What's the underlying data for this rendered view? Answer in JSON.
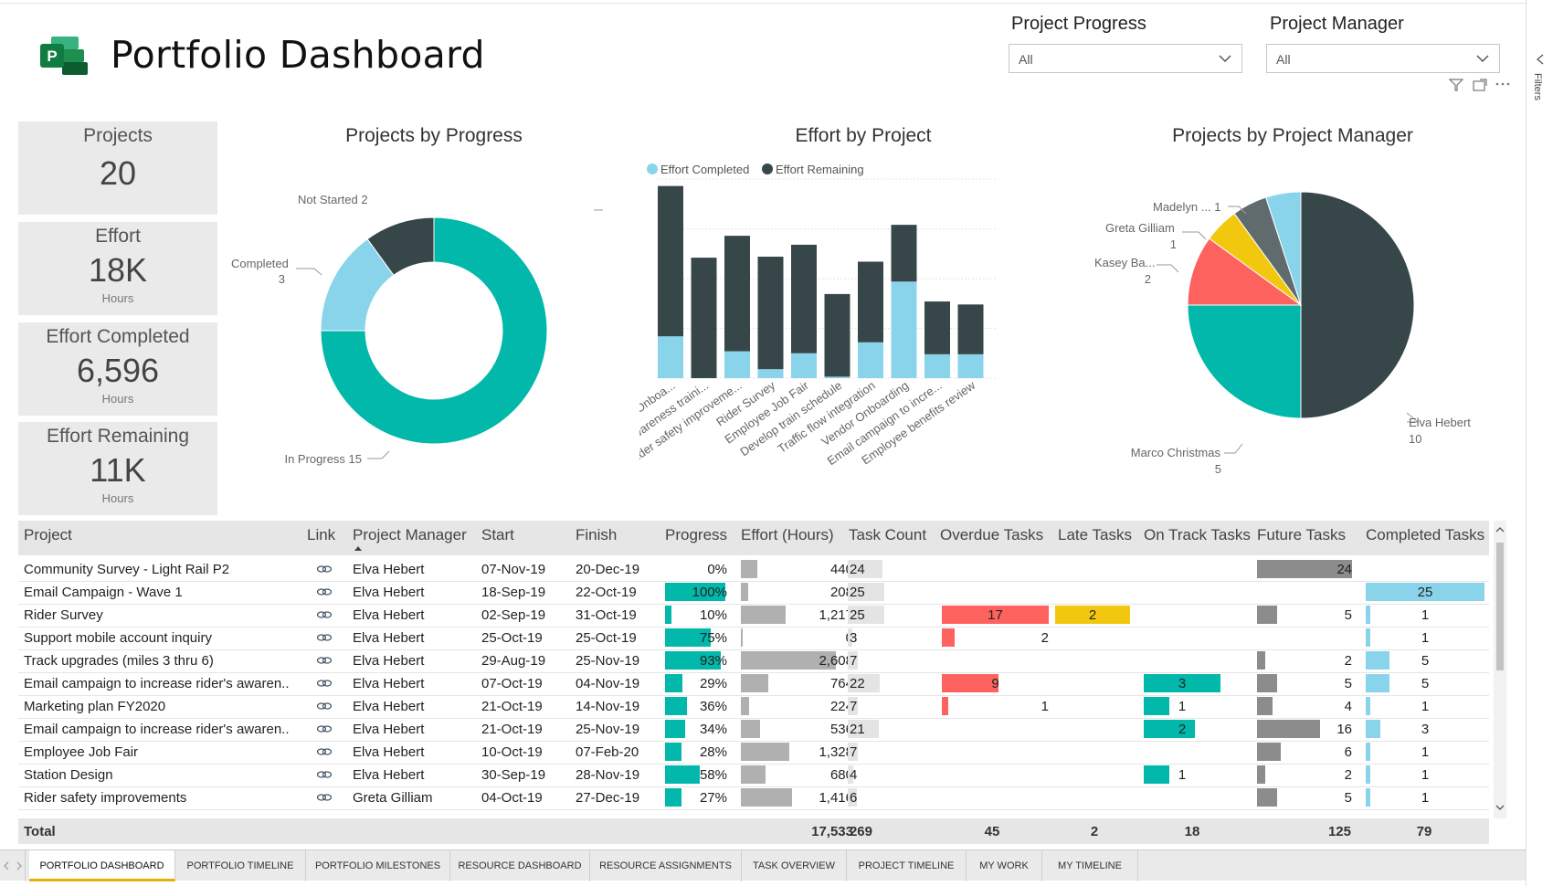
{
  "app": {
    "title": "Portfolio Dashboard",
    "logo_letter": "P"
  },
  "slicers": [
    {
      "label": "Project Progress",
      "value": "All"
    },
    {
      "label": "Project Manager",
      "value": "All"
    }
  ],
  "filters_pane": {
    "label": "Filters"
  },
  "cards": [
    {
      "label": "Projects",
      "value": "20",
      "unit": ""
    },
    {
      "label": "Effort",
      "value": "18K",
      "unit": "Hours"
    },
    {
      "label": "Effort Completed",
      "value": "6,596",
      "unit": "Hours"
    },
    {
      "label": "Effort Remaining",
      "value": "11K",
      "unit": "Hours"
    }
  ],
  "chart_data": [
    {
      "type": "pie",
      "variant": "donut",
      "title": "Projects by Progress",
      "slices": [
        {
          "label": "In Progress",
          "value": 15,
          "color": "#01B8AA"
        },
        {
          "label": "Completed",
          "value": 3,
          "color": "#8AD4EB"
        },
        {
          "label": "Not Started",
          "value": 2,
          "color": "#374649"
        }
      ],
      "data_labels": [
        "In Progress 15",
        "Completed",
        "3",
        "Not Started 2"
      ]
    },
    {
      "type": "bar",
      "stacked": true,
      "title": "Effort by Project",
      "categories": [
        "Vendor Onboa...",
        "Driver awareness traini...",
        "Rider safety improveme...",
        "Rider Survey",
        "Employee Job Fair",
        "Develop train schedule",
        "Traffic flow integration",
        "Vendor Onboarding",
        "Email campaign to incre...",
        "Employee benefits review"
      ],
      "series": [
        {
          "name": "Effort Completed",
          "color": "#8AD4EB",
          "values": [
            420,
            0,
            270,
            90,
            250,
            15,
            360,
            970,
            240,
            240
          ]
        },
        {
          "name": "Effort Remaining",
          "color": "#374649",
          "values": [
            1510,
            1210,
            1160,
            1130,
            1090,
            830,
            810,
            570,
            530,
            500
          ]
        }
      ],
      "yticks": [
        "0",
        "500",
        "1,000",
        "1,500",
        "2,000"
      ],
      "ylim": [
        0,
        2000
      ],
      "legend_position": "top-left",
      "grid": true
    },
    {
      "type": "pie",
      "title": "Projects by Project Manager",
      "slices": [
        {
          "label": "Elva Hebert",
          "value": 10,
          "color": "#374649"
        },
        {
          "label": "Marco Christmas",
          "value": 5,
          "color": "#01B8AA"
        },
        {
          "label": "Kasey Ba...",
          "value": 2,
          "color": "#FD625E"
        },
        {
          "label": "Greta Gilliam",
          "value": 1,
          "color": "#F2C80F"
        },
        {
          "label": "Madelyn ...",
          "value": 1,
          "color": "#5F6B6D"
        },
        {
          "label": "",
          "value": 1,
          "color": "#8AD4EB"
        }
      ],
      "data_labels": [
        "Madelyn ... 1",
        "Greta Gilliam",
        "1",
        "Kasey Ba...",
        "2",
        "Elva Hebert",
        "10",
        "Marco Christmas",
        "5"
      ]
    }
  ],
  "table": {
    "headers": [
      "Project",
      "Link",
      "Project Manager",
      "Start",
      "Finish",
      "Progress",
      "Effort (Hours)",
      "Task Count",
      "Overdue Tasks",
      "Late Tasks",
      "On Track Tasks",
      "Future Tasks",
      "Completed Tasks"
    ],
    "rows": [
      {
        "project": "Community Survey - Light Rail P2",
        "manager": "Elva Hebert",
        "start": "07-Nov-19",
        "finish": "20-Dec-19",
        "progress": "0%",
        "progress_v": 0,
        "effort": "440",
        "effort_v": 440,
        "tasks": "24",
        "tasks_v": 24,
        "overdue": "",
        "overdue_v": 0,
        "late": "",
        "late_v": 0,
        "ontrack": "",
        "ontrack_v": 0,
        "future": "24",
        "future_v": 24,
        "completed": "",
        "completed_v": 0
      },
      {
        "project": "Email Campaign - Wave 1",
        "manager": "Elva Hebert",
        "start": "18-Sep-19",
        "finish": "22-Oct-19",
        "progress": "100%",
        "progress_v": 100,
        "effort": "208",
        "effort_v": 208,
        "tasks": "25",
        "tasks_v": 25,
        "overdue": "",
        "overdue_v": 0,
        "late": "",
        "late_v": 0,
        "ontrack": "",
        "ontrack_v": 0,
        "future": "",
        "future_v": 0,
        "completed": "25",
        "completed_v": 25
      },
      {
        "project": "Rider Survey",
        "manager": "Elva Hebert",
        "start": "02-Sep-19",
        "finish": "31-Oct-19",
        "progress": "10%",
        "progress_v": 10,
        "effort": "1,217",
        "effort_v": 1217,
        "tasks": "25",
        "tasks_v": 25,
        "overdue": "17",
        "overdue_v": 17,
        "late": "2",
        "late_v": 2,
        "ontrack": "",
        "ontrack_v": 0,
        "future": "5",
        "future_v": 5,
        "completed": "1",
        "completed_v": 1
      },
      {
        "project": "Support mobile account inquiry",
        "manager": "Elva Hebert",
        "start": "25-Oct-19",
        "finish": "25-Oct-19",
        "progress": "75%",
        "progress_v": 75,
        "effort": "0",
        "effort_v": 0,
        "tasks": "3",
        "tasks_v": 3,
        "overdue": "2",
        "overdue_v": 2,
        "late": "",
        "late_v": 0,
        "ontrack": "",
        "ontrack_v": 0,
        "future": "",
        "future_v": 0,
        "completed": "1",
        "completed_v": 1
      },
      {
        "project": "Track upgrades (miles 3 thru 6)",
        "manager": "Elva Hebert",
        "start": "29-Aug-19",
        "finish": "25-Nov-19",
        "progress": "93%",
        "progress_v": 93,
        "effort": "2,608",
        "effort_v": 2608,
        "tasks": "7",
        "tasks_v": 7,
        "overdue": "",
        "overdue_v": 0,
        "late": "",
        "late_v": 0,
        "ontrack": "",
        "ontrack_v": 0,
        "future": "2",
        "future_v": 2,
        "completed": "5",
        "completed_v": 5
      },
      {
        "project": "Email campaign to increase rider's awaren...",
        "manager": "Elva Hebert",
        "start": "07-Oct-19",
        "finish": "04-Nov-19",
        "progress": "29%",
        "progress_v": 29,
        "effort": "764",
        "effort_v": 764,
        "tasks": "22",
        "tasks_v": 22,
        "overdue": "9",
        "overdue_v": 9,
        "late": "",
        "late_v": 0,
        "ontrack": "3",
        "ontrack_v": 3,
        "future": "5",
        "future_v": 5,
        "completed": "5",
        "completed_v": 5
      },
      {
        "project": "Marketing plan FY2020",
        "manager": "Elva Hebert",
        "start": "21-Oct-19",
        "finish": "14-Nov-19",
        "progress": "36%",
        "progress_v": 36,
        "effort": "224",
        "effort_v": 224,
        "tasks": "7",
        "tasks_v": 7,
        "overdue": "1",
        "overdue_v": 1,
        "late": "",
        "late_v": 0,
        "ontrack": "1",
        "ontrack_v": 1,
        "future": "4",
        "future_v": 4,
        "completed": "1",
        "completed_v": 1
      },
      {
        "project": "Email campaign to increase rider's awaren...",
        "manager": "Elva Hebert",
        "start": "21-Oct-19",
        "finish": "25-Nov-19",
        "progress": "34%",
        "progress_v": 34,
        "effort": "536",
        "effort_v": 536,
        "tasks": "21",
        "tasks_v": 21,
        "overdue": "",
        "overdue_v": 0,
        "late": "",
        "late_v": 0,
        "ontrack": "2",
        "ontrack_v": 2,
        "future": "16",
        "future_v": 16,
        "completed": "3",
        "completed_v": 3
      },
      {
        "project": "Employee Job Fair",
        "manager": "Elva Hebert",
        "start": "10-Oct-19",
        "finish": "07-Feb-20",
        "progress": "28%",
        "progress_v": 28,
        "effort": "1,328",
        "effort_v": 1328,
        "tasks": "7",
        "tasks_v": 7,
        "overdue": "",
        "overdue_v": 0,
        "late": "",
        "late_v": 0,
        "ontrack": "",
        "ontrack_v": 0,
        "future": "6",
        "future_v": 6,
        "completed": "1",
        "completed_v": 1
      },
      {
        "project": "Station Design",
        "manager": "Elva Hebert",
        "start": "30-Sep-19",
        "finish": "28-Nov-19",
        "progress": "58%",
        "progress_v": 58,
        "effort": "680",
        "effort_v": 680,
        "tasks": "4",
        "tasks_v": 4,
        "overdue": "",
        "overdue_v": 0,
        "late": "",
        "late_v": 0,
        "ontrack": "1",
        "ontrack_v": 1,
        "future": "2",
        "future_v": 2,
        "completed": "1",
        "completed_v": 1
      },
      {
        "project": "Rider safety improvements",
        "manager": "Greta Gilliam",
        "start": "04-Oct-19",
        "finish": "27-Dec-19",
        "progress": "27%",
        "progress_v": 27,
        "effort": "1,416",
        "effort_v": 1416,
        "tasks": "6",
        "tasks_v": 6,
        "overdue": "",
        "overdue_v": 0,
        "late": "",
        "late_v": 0,
        "ontrack": "",
        "ontrack_v": 0,
        "future": "5",
        "future_v": 5,
        "completed": "1",
        "completed_v": 1
      }
    ],
    "total": {
      "label": "Total",
      "effort": "17,533",
      "tasks": "269",
      "overdue": "45",
      "late": "2",
      "ontrack": "18",
      "future": "125",
      "completed": "79"
    }
  },
  "tabs": [
    "PORTFOLIO DASHBOARD",
    "PORTFOLIO TIMELINE",
    "PORTFOLIO MILESTONES",
    "RESOURCE DASHBOARD",
    "RESOURCE ASSIGNMENTS",
    "TASK OVERVIEW",
    "PROJECT TIMELINE",
    "MY WORK",
    "MY TIMELINE"
  ],
  "active_tab": 0,
  "colors": {
    "teal": "#01B8AA",
    "lightblue": "#8AD4EB",
    "dark": "#374649",
    "red": "#FD625E",
    "yellow": "#F2C80F",
    "gray": "#8c8c8c",
    "tab_accent": "#e8b000"
  }
}
